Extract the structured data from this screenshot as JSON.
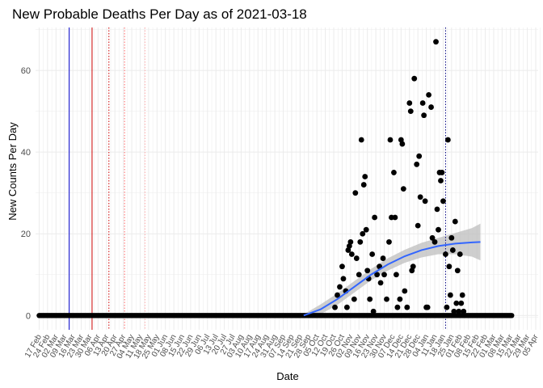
{
  "chart_data": {
    "type": "scatter",
    "title": "New Probable Deaths Per Day as of 2021-03-18",
    "xlabel": "Date",
    "ylabel": "New Counts Per Day",
    "xlim": [
      "2020-02-14",
      "2021-04-07"
    ],
    "ylim": [
      -3.5,
      70.5
    ],
    "grid": true,
    "y_ticks": [
      0,
      20,
      40,
      60
    ],
    "x_ticks": [
      {
        "date": "2020-02-17",
        "label": "17 Feb"
      },
      {
        "date": "2020-02-24",
        "label": "24 Feb"
      },
      {
        "date": "2020-03-02",
        "label": "02 Mar"
      },
      {
        "date": "2020-03-09",
        "label": "09 Mar"
      },
      {
        "date": "2020-03-16",
        "label": "16 Mar"
      },
      {
        "date": "2020-03-23",
        "label": "23 Mar"
      },
      {
        "date": "2020-03-30",
        "label": "30 Mar"
      },
      {
        "date": "2020-04-06",
        "label": "06 Apr"
      },
      {
        "date": "2020-04-13",
        "label": "13 Apr"
      },
      {
        "date": "2020-04-20",
        "label": "20 Apr"
      },
      {
        "date": "2020-04-27",
        "label": "27 Apr"
      },
      {
        "date": "2020-05-04",
        "label": "04 May"
      },
      {
        "date": "2020-05-11",
        "label": "11 May"
      },
      {
        "date": "2020-05-18",
        "label": "18 May"
      },
      {
        "date": "2020-05-25",
        "label": "25 May"
      },
      {
        "date": "2020-06-01",
        "label": "01 Jun"
      },
      {
        "date": "2020-06-08",
        "label": "08 Jun"
      },
      {
        "date": "2020-06-15",
        "label": "15 Jun"
      },
      {
        "date": "2020-06-22",
        "label": "22 Jun"
      },
      {
        "date": "2020-06-29",
        "label": "29 Jun"
      },
      {
        "date": "2020-07-06",
        "label": "06 Jul"
      },
      {
        "date": "2020-07-13",
        "label": "13 Jul"
      },
      {
        "date": "2020-07-20",
        "label": "20 Jul"
      },
      {
        "date": "2020-07-27",
        "label": "27 Jul"
      },
      {
        "date": "2020-08-03",
        "label": "03 Aug"
      },
      {
        "date": "2020-08-10",
        "label": "10 Aug"
      },
      {
        "date": "2020-08-17",
        "label": "17 Aug"
      },
      {
        "date": "2020-08-24",
        "label": "24 Aug"
      },
      {
        "date": "2020-08-31",
        "label": "31 Aug"
      },
      {
        "date": "2020-09-07",
        "label": "07 Sep"
      },
      {
        "date": "2020-09-14",
        "label": "14 Sep"
      },
      {
        "date": "2020-09-21",
        "label": "21 Sep"
      },
      {
        "date": "2020-09-28",
        "label": "28 Sep"
      },
      {
        "date": "2020-10-05",
        "label": "05 Oct"
      },
      {
        "date": "2020-10-12",
        "label": "12 Oct"
      },
      {
        "date": "2020-10-19",
        "label": "19 Oct"
      },
      {
        "date": "2020-10-26",
        "label": "26 Oct"
      },
      {
        "date": "2020-11-02",
        "label": "02 Nov"
      },
      {
        "date": "2020-11-09",
        "label": "09 Nov"
      },
      {
        "date": "2020-11-16",
        "label": "16 Nov"
      },
      {
        "date": "2020-11-23",
        "label": "23 Nov"
      },
      {
        "date": "2020-11-30",
        "label": "30 Nov"
      },
      {
        "date": "2020-12-07",
        "label": "07 Dec"
      },
      {
        "date": "2020-12-14",
        "label": "14 Dec"
      },
      {
        "date": "2020-12-21",
        "label": "21 Dec"
      },
      {
        "date": "2020-12-28",
        "label": "28 Dec"
      },
      {
        "date": "2021-01-04",
        "label": "04 Jan"
      },
      {
        "date": "2021-01-11",
        "label": "11 Jan"
      },
      {
        "date": "2021-01-18",
        "label": "18 Jan"
      },
      {
        "date": "2021-01-25",
        "label": "25 Jan"
      },
      {
        "date": "2021-02-01",
        "label": "01 Feb"
      },
      {
        "date": "2021-02-08",
        "label": "08 Feb"
      },
      {
        "date": "2021-02-15",
        "label": "15 Feb"
      },
      {
        "date": "2021-02-22",
        "label": "22 Feb"
      },
      {
        "date": "2021-03-01",
        "label": "01 Mar"
      },
      {
        "date": "2021-03-08",
        "label": "08 Mar"
      },
      {
        "date": "2021-03-15",
        "label": "15 Mar"
      },
      {
        "date": "2021-03-22",
        "label": "22 Mar"
      },
      {
        "date": "2021-03-29",
        "label": "29 Mar"
      },
      {
        "date": "2021-04-05",
        "label": "05 Apr"
      }
    ],
    "vlines": [
      {
        "date": "2020-03-13",
        "color": "#0000cc",
        "style": "solid"
      },
      {
        "date": "2020-04-01",
        "color": "#cc0000",
        "style": "solid"
      },
      {
        "date": "2020-04-15",
        "color": "#cc0000",
        "style": "dotted"
      },
      {
        "date": "2020-04-28",
        "color": "#ff6666",
        "style": "dotted"
      },
      {
        "date": "2020-05-15",
        "color": "#ffaaaa",
        "style": "dotted"
      },
      {
        "date": "2021-01-20",
        "color": "#000080",
        "style": "dotted"
      }
    ],
    "zero_points": {
      "from": "2020-02-17",
      "to": "2021-03-16",
      "value": 0
    },
    "points": [
      {
        "date": "2020-10-20",
        "y": 2
      },
      {
        "date": "2020-10-22",
        "y": 5
      },
      {
        "date": "2020-10-24",
        "y": 7
      },
      {
        "date": "2020-10-26",
        "y": 12
      },
      {
        "date": "2020-10-27",
        "y": 9
      },
      {
        "date": "2020-10-29",
        "y": 6
      },
      {
        "date": "2020-10-30",
        "y": 2
      },
      {
        "date": "2020-10-31",
        "y": 16
      },
      {
        "date": "2020-11-01",
        "y": 17
      },
      {
        "date": "2020-11-02",
        "y": 18
      },
      {
        "date": "2020-11-03",
        "y": 15
      },
      {
        "date": "2020-11-05",
        "y": 4
      },
      {
        "date": "2020-11-06",
        "y": 30
      },
      {
        "date": "2020-11-07",
        "y": 14
      },
      {
        "date": "2020-11-09",
        "y": 10
      },
      {
        "date": "2020-11-10",
        "y": 18
      },
      {
        "date": "2020-11-11",
        "y": 43
      },
      {
        "date": "2020-11-12",
        "y": 20
      },
      {
        "date": "2020-11-13",
        "y": 32
      },
      {
        "date": "2020-11-14",
        "y": 34
      },
      {
        "date": "2020-11-15",
        "y": 21
      },
      {
        "date": "2020-11-16",
        "y": 11
      },
      {
        "date": "2020-11-17",
        "y": 9
      },
      {
        "date": "2020-11-18",
        "y": 4
      },
      {
        "date": "2020-11-20",
        "y": 15
      },
      {
        "date": "2020-11-21",
        "y": 1
      },
      {
        "date": "2020-11-22",
        "y": 24
      },
      {
        "date": "2020-11-24",
        "y": 10
      },
      {
        "date": "2020-11-26",
        "y": 12
      },
      {
        "date": "2020-11-27",
        "y": 8
      },
      {
        "date": "2020-11-29",
        "y": 14
      },
      {
        "date": "2020-11-30",
        "y": 10
      },
      {
        "date": "2020-12-02",
        "y": 4
      },
      {
        "date": "2020-12-04",
        "y": 18
      },
      {
        "date": "2020-12-05",
        "y": 43
      },
      {
        "date": "2020-12-06",
        "y": 24
      },
      {
        "date": "2020-12-08",
        "y": 35
      },
      {
        "date": "2020-12-09",
        "y": 24
      },
      {
        "date": "2020-12-10",
        "y": 10
      },
      {
        "date": "2020-12-11",
        "y": 2
      },
      {
        "date": "2020-12-13",
        "y": 4
      },
      {
        "date": "2020-12-14",
        "y": 43
      },
      {
        "date": "2020-12-15",
        "y": 42
      },
      {
        "date": "2020-12-16",
        "y": 31
      },
      {
        "date": "2020-12-17",
        "y": 6
      },
      {
        "date": "2020-12-19",
        "y": 2
      },
      {
        "date": "2020-12-21",
        "y": 52
      },
      {
        "date": "2020-12-22",
        "y": 50
      },
      {
        "date": "2020-12-23",
        "y": 11
      },
      {
        "date": "2020-12-24",
        "y": 12
      },
      {
        "date": "2020-12-25",
        "y": 58
      },
      {
        "date": "2020-12-27",
        "y": 37
      },
      {
        "date": "2020-12-28",
        "y": 22
      },
      {
        "date": "2020-12-29",
        "y": 39
      },
      {
        "date": "2020-12-30",
        "y": 29
      },
      {
        "date": "2021-01-01",
        "y": 52
      },
      {
        "date": "2021-01-02",
        "y": 49
      },
      {
        "date": "2021-01-03",
        "y": 28
      },
      {
        "date": "2021-01-04",
        "y": 2
      },
      {
        "date": "2021-01-05",
        "y": 2
      },
      {
        "date": "2021-01-06",
        "y": 54
      },
      {
        "date": "2021-01-08",
        "y": 51
      },
      {
        "date": "2021-01-09",
        "y": 19
      },
      {
        "date": "2021-01-11",
        "y": 18
      },
      {
        "date": "2021-01-12",
        "y": 67
      },
      {
        "date": "2021-01-13",
        "y": 26
      },
      {
        "date": "2021-01-14",
        "y": 21
      },
      {
        "date": "2021-01-15",
        "y": 35
      },
      {
        "date": "2021-01-16",
        "y": 33
      },
      {
        "date": "2021-01-17",
        "y": 35
      },
      {
        "date": "2021-01-18",
        "y": 28
      },
      {
        "date": "2021-01-20",
        "y": 15
      },
      {
        "date": "2021-01-21",
        "y": 2
      },
      {
        "date": "2021-01-22",
        "y": 43
      },
      {
        "date": "2021-01-23",
        "y": 12
      },
      {
        "date": "2021-01-24",
        "y": 5
      },
      {
        "date": "2021-01-25",
        "y": 19
      },
      {
        "date": "2021-01-26",
        "y": 16
      },
      {
        "date": "2021-01-27",
        "y": 1
      },
      {
        "date": "2021-01-28",
        "y": 23
      },
      {
        "date": "2021-01-29",
        "y": 3
      },
      {
        "date": "2021-01-30",
        "y": 11
      },
      {
        "date": "2021-01-31",
        "y": 1
      },
      {
        "date": "2021-02-01",
        "y": 15
      },
      {
        "date": "2021-02-02",
        "y": 3
      },
      {
        "date": "2021-02-03",
        "y": 5
      },
      {
        "date": "2021-02-04",
        "y": 1
      }
    ],
    "trend": [
      {
        "date": "2020-09-24",
        "y": 0
      },
      {
        "date": "2020-10-08",
        "y": 1.5
      },
      {
        "date": "2020-10-22",
        "y": 4
      },
      {
        "date": "2020-11-05",
        "y": 7
      },
      {
        "date": "2020-11-19",
        "y": 10
      },
      {
        "date": "2020-12-03",
        "y": 12.5
      },
      {
        "date": "2020-12-17",
        "y": 14.5
      },
      {
        "date": "2020-12-31",
        "y": 16
      },
      {
        "date": "2021-01-14",
        "y": 17
      },
      {
        "date": "2021-01-28",
        "y": 17.6
      },
      {
        "date": "2021-02-11",
        "y": 17.9
      },
      {
        "date": "2021-02-18",
        "y": 18
      }
    ],
    "trend_band": [
      {
        "date": "2020-09-24",
        "lo": -0.3,
        "hi": 0.3
      },
      {
        "date": "2020-10-08",
        "lo": 0.3,
        "hi": 2.7
      },
      {
        "date": "2020-10-22",
        "lo": 2.6,
        "hi": 5.4
      },
      {
        "date": "2020-11-05",
        "lo": 5.6,
        "hi": 8.4
      },
      {
        "date": "2020-11-19",
        "lo": 8.6,
        "hi": 11.4
      },
      {
        "date": "2020-12-03",
        "lo": 11.0,
        "hi": 14.0
      },
      {
        "date": "2020-12-17",
        "lo": 12.9,
        "hi": 16.1
      },
      {
        "date": "2020-12-31",
        "lo": 14.2,
        "hi": 17.8
      },
      {
        "date": "2021-01-14",
        "lo": 15.0,
        "hi": 19.0
      },
      {
        "date": "2021-01-28",
        "lo": 15.0,
        "hi": 20.2
      },
      {
        "date": "2021-02-11",
        "lo": 14.4,
        "hi": 21.4
      },
      {
        "date": "2021-02-18",
        "lo": 13.5,
        "hi": 22.5
      }
    ],
    "colors": {
      "points": "#000000",
      "trend": "#3366ff",
      "band": "#bdbdbd",
      "grid": "#ebebeb"
    }
  }
}
